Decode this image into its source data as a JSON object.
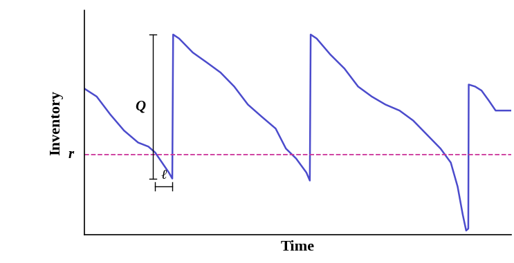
{
  "chart_data": {
    "type": "line",
    "x_label": "Time",
    "y_label": "Inventory",
    "x": [
      0,
      2.9,
      6.1,
      9.3,
      12.6,
      15.0,
      16.6,
      18.2,
      19.8,
      20.6,
      20.8,
      22.2,
      25.4,
      28.7,
      31.9,
      35.1,
      38.3,
      41.5,
      44.8,
      47.2,
      49.6,
      52.0,
      52.8,
      53.0,
      54.4,
      57.6,
      60.9,
      64.1,
      67.3,
      70.5,
      73.8,
      77.0,
      80.2,
      83.4,
      85.8,
      87.4,
      88.6,
      89.4,
      89.9,
      90.0,
      91.5,
      93.0,
      94.7,
      96.3,
      100
    ],
    "values": [
      61,
      57,
      48,
      40,
      34,
      32,
      29,
      24,
      19,
      16,
      88,
      86,
      79,
      74,
      69,
      62,
      53,
      47,
      41,
      31,
      26,
      19,
      15,
      88,
      86,
      78,
      71,
      62,
      57,
      53,
      50,
      45,
      38,
      31,
      24,
      12,
      -2,
      -10,
      -9,
      63,
      62,
      60,
      55,
      50,
      50
    ],
    "color": "#4b4bcc",
    "reorder_point": {
      "label": "r",
      "value": 28,
      "color": "#cc3399",
      "line_style": "dashed"
    },
    "order_quantity": {
      "label": "Q",
      "x": 16.1,
      "from": 16,
      "to": 88
    },
    "lead_time": {
      "label": "ℓ",
      "y": 12,
      "from": 16.6,
      "to": 20.6
    },
    "xlim": [
      0,
      100
    ],
    "ylim": [
      -12,
      100
    ],
    "xticks": [],
    "yticks": [],
    "tick_labels": false,
    "grid": false
  }
}
